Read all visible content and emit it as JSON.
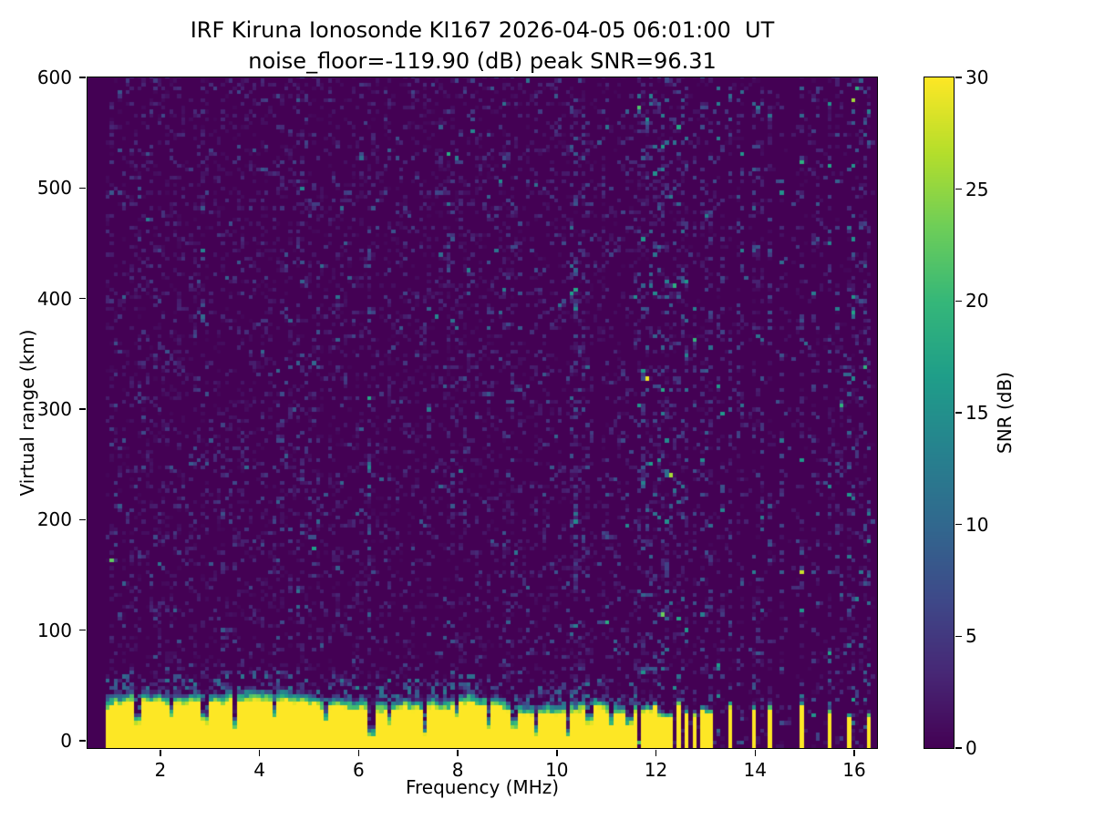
{
  "chart_data": {
    "type": "heatmap",
    "title": "IRF Kiruna Ionosonde KI167 2026-04-05 06:01:00  UT",
    "subtitle": "noise_floor=-119.90 (dB) peak SNR=96.31",
    "station": "KI167",
    "timestamp_ut": "2026-04-05 06:01:00",
    "noise_floor_db": -119.9,
    "peak_snr_db": 96.31,
    "xlabel": "Frequency (MHz)",
    "ylabel": "Virtual range (km)",
    "x_range": [
      0.53,
      16.46
    ],
    "y_range": [
      -6.6,
      600
    ],
    "x_ticks": [
      2,
      4,
      6,
      8,
      10,
      12,
      14,
      16
    ],
    "y_ticks": [
      0,
      100,
      200,
      300,
      400,
      500,
      600
    ],
    "grid": false,
    "legend_position": "none",
    "background_color": "#440154",
    "colorbar": {
      "label": "SNR (dB)",
      "range": [
        0,
        30
      ],
      "ticks": [
        0,
        5,
        10,
        15,
        20,
        25,
        30
      ],
      "colormap": "viridis"
    },
    "features": {
      "data_freq_start": 0.9,
      "data_freq_end": 16.42,
      "freq_step_mhz": 0.08,
      "range_step_km": 3.5,
      "background_noise": {
        "speckle_prob": 0.24,
        "mean_db": 2.0,
        "high_band_speckle_prob": 0.1
      },
      "ground_echo": {
        "freq_start": 0.9,
        "freq_end": 11.65,
        "snr_db": 30,
        "top_km_mean": 30,
        "top_km_min": 23,
        "top_km_max": 36,
        "transition_km": 12,
        "notches": [
          {
            "f": 1.55,
            "d": 20
          },
          {
            "f": 2.2,
            "d": 10
          },
          {
            "f": 2.9,
            "d": 18
          },
          {
            "f": 3.5,
            "d": 22
          },
          {
            "f": 4.3,
            "d": 16
          },
          {
            "f": 5.35,
            "d": 10
          },
          {
            "f": 6.25,
            "d": 26
          },
          {
            "f": 6.6,
            "d": 12
          },
          {
            "f": 7.35,
            "d": 24
          },
          {
            "f": 8.0,
            "d": 10
          },
          {
            "f": 8.6,
            "d": 20
          },
          {
            "f": 9.15,
            "d": 12
          },
          {
            "f": 9.6,
            "d": 18
          },
          {
            "f": 10.2,
            "d": 22
          },
          {
            "f": 10.65,
            "d": 14
          },
          {
            "f": 11.1,
            "d": 12
          },
          {
            "f": 11.45,
            "d": 10
          }
        ]
      },
      "echo_stripes": {
        "freqs": [
          11.72,
          11.87,
          12.02,
          12.17,
          12.32,
          12.48,
          12.63,
          12.78,
          12.95,
          13.08,
          13.5,
          13.98,
          14.3,
          14.95,
          15.5,
          15.92,
          16.28
        ],
        "width_mhz": 0.06,
        "top_km_min": 20,
        "top_km_max": 32,
        "rfi_strength": 0.4
      },
      "rfi_columns": [
        {
          "f": 4.85,
          "s": 0.15
        },
        {
          "f": 6.22,
          "s": 0.3
        },
        {
          "f": 7.85,
          "s": 0.15
        },
        {
          "f": 9.0,
          "s": 0.12
        },
        {
          "f": 10.35,
          "s": 0.4
        },
        {
          "f": 10.6,
          "s": 0.25
        },
        {
          "f": 13.3,
          "s": 0.25
        },
        {
          "f": 13.7,
          "s": 0.3
        },
        {
          "f": 14.1,
          "s": 0.3
        },
        {
          "f": 14.55,
          "s": 0.3
        },
        {
          "f": 15.2,
          "s": 0.3
        },
        {
          "f": 15.7,
          "s": 0.3
        },
        {
          "f": 16.1,
          "s": 0.3
        }
      ]
    }
  }
}
